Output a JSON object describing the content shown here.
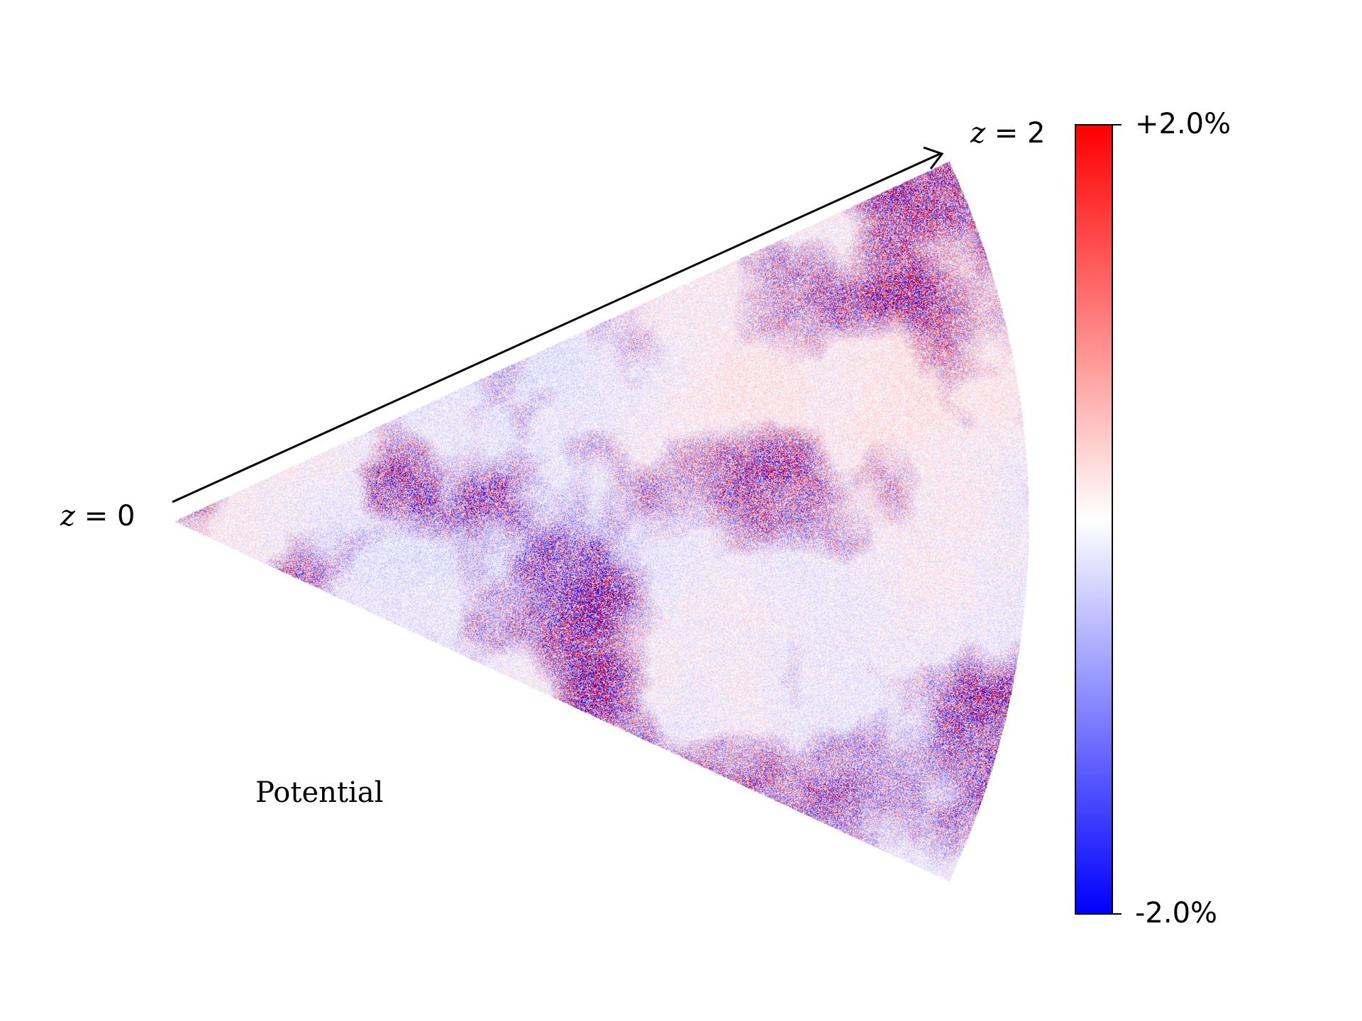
{
  "figure": {
    "field_label": "Potential",
    "redshift_start": {
      "var": "z",
      "eq": " = 0"
    },
    "redshift_end": {
      "var": "z",
      "eq": " = 2"
    },
    "colorbar": {
      "max_label": "+2.0%",
      "min_label": "-2.0%",
      "colormap": "bwr",
      "colors": {
        "low": "#0000ff",
        "mid": "#ffffff",
        "high": "#ff0000"
      }
    },
    "arrow_icon": "arrow-right-icon"
  }
}
